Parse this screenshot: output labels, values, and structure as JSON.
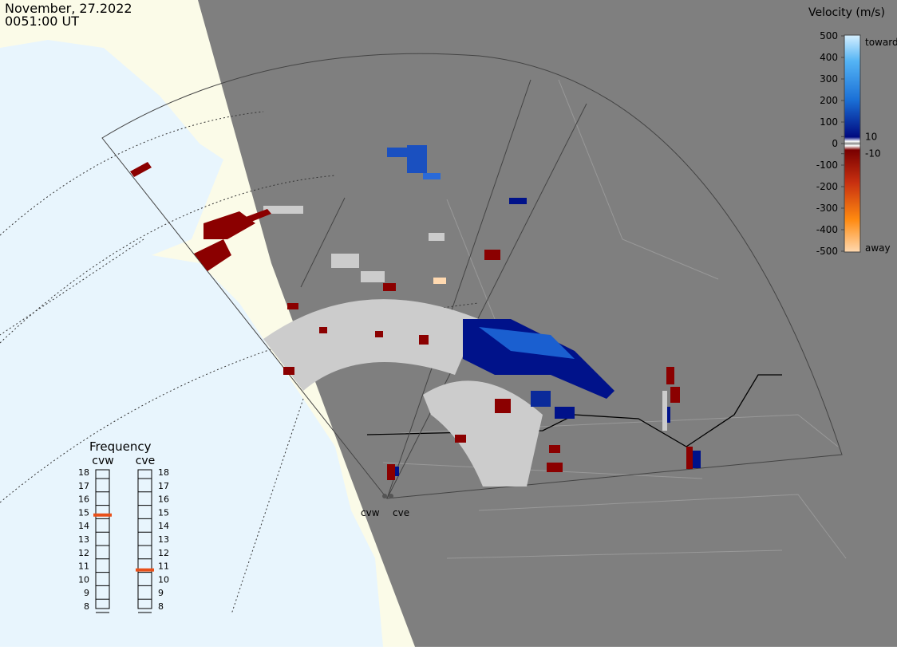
{
  "header": {
    "date": "November, 27.2022",
    "time": "0051:00 UT"
  },
  "velocity_legend": {
    "title": "Velocity (m/s)",
    "range": [
      -500,
      500
    ],
    "ticks": [
      500,
      400,
      300,
      200,
      100,
      10,
      0,
      -10,
      -100,
      -200,
      -300,
      -400,
      -500
    ],
    "toward": "toward",
    "away": "away"
  },
  "frequency": {
    "title": "Frequency",
    "range": [
      8,
      18
    ],
    "ticks": [
      18,
      17,
      16,
      15,
      14,
      13,
      12,
      11,
      10,
      9,
      8
    ],
    "radars": [
      {
        "name": "cvw",
        "value": 14.8
      },
      {
        "name": "cve",
        "value": 10.7
      }
    ]
  },
  "sites": [
    "cvw",
    "cve"
  ]
}
